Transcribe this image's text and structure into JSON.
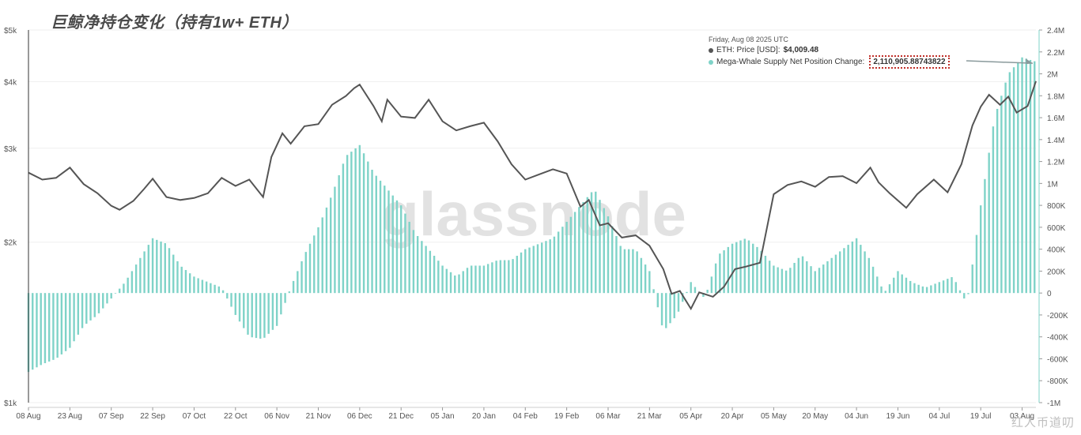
{
  "title": "巨鲸净持仓变化（持有1w+ ETH）",
  "watermark": "glassnode",
  "corner_watermark": "红人币道叨",
  "tooltip": {
    "date": "Friday, Aug 08 2025 UTC",
    "price_label": "ETH: Price [USD]:",
    "price_value": "$4,009.48",
    "supply_label": "Mega-Whale Supply Net Position Change:",
    "supply_value": "2,110,905.88743822"
  },
  "colors": {
    "price_line": "#555555",
    "bars": "#7fd3c8",
    "price_dot": "#555555",
    "supply_dot": "#7fd3c8",
    "highlight": "#c0302a",
    "arrow": "#8a9a9c"
  },
  "chart_data": {
    "type": "line+bar",
    "x_tick_labels": [
      "08 Aug",
      "23 Aug",
      "07 Sep",
      "22 Sep",
      "07 Oct",
      "22 Oct",
      "06 Nov",
      "21 Nov",
      "06 Dec",
      "21 Dec",
      "05 Jan",
      "20 Jan",
      "04 Feb",
      "19 Feb",
      "06 Mar",
      "21 Mar",
      "05 Apr",
      "20 Apr",
      "05 May",
      "20 May",
      "04 Jun",
      "19 Jun",
      "04 Jul",
      "19 Jul",
      "03 Aug"
    ],
    "x_tick_days": [
      0,
      15,
      30,
      45,
      60,
      75,
      90,
      105,
      120,
      135,
      150,
      165,
      180,
      195,
      210,
      225,
      240,
      255,
      270,
      285,
      300,
      315,
      330,
      345,
      360
    ],
    "x_range_days": [
      0,
      365
    ],
    "left_axis": {
      "scale": "log",
      "ticks": [
        1000,
        2000,
        3000,
        4000,
        5000
      ],
      "tick_labels": [
        "$1k",
        "$2k",
        "$3k",
        "$4k",
        "$5k"
      ],
      "range": [
        1000,
        5000
      ]
    },
    "right_axis": {
      "scale": "linear",
      "ticks": [
        -1000000,
        -800000,
        -600000,
        -400000,
        -200000,
        0,
        200000,
        400000,
        600000,
        800000,
        1000000,
        1200000,
        1400000,
        1600000,
        1800000,
        2000000,
        2200000,
        2400000
      ],
      "tick_labels": [
        "-1M",
        "-800K",
        "-600K",
        "-400K",
        "-200K",
        "0",
        "200K",
        "400K",
        "600K",
        "800K",
        "1M",
        "1.2M",
        "1.4M",
        "1.6M",
        "1.8M",
        "2M",
        "2.2M",
        "2.4M"
      ],
      "range": [
        -1000000,
        2400000
      ]
    },
    "price_series": {
      "name": "ETH: Price [USD]",
      "x_days": [
        0,
        5,
        10,
        15,
        20,
        25,
        30,
        33,
        38,
        42,
        45,
        50,
        55,
        60,
        65,
        70,
        75,
        80,
        85,
        88,
        92,
        95,
        100,
        105,
        110,
        115,
        118,
        120,
        125,
        128,
        130,
        135,
        140,
        145,
        150,
        155,
        160,
        165,
        170,
        175,
        180,
        185,
        190,
        195,
        200,
        203,
        207,
        210,
        215,
        220,
        225,
        230,
        233,
        236,
        240,
        243,
        248,
        252,
        256,
        260,
        265,
        270,
        275,
        280,
        285,
        290,
        295,
        300,
        305,
        308,
        312,
        318,
        322,
        328,
        333,
        338,
        342,
        345,
        348,
        352,
        355,
        358,
        362,
        365
      ],
      "values": [
        2700,
        2620,
        2640,
        2760,
        2570,
        2470,
        2340,
        2300,
        2390,
        2520,
        2630,
        2430,
        2400,
        2420,
        2470,
        2640,
        2550,
        2620,
        2430,
        2890,
        3200,
        3060,
        3300,
        3330,
        3620,
        3760,
        3890,
        3950,
        3600,
        3370,
        3700,
        3440,
        3420,
        3700,
        3370,
        3240,
        3300,
        3350,
        3090,
        2800,
        2620,
        2680,
        2740,
        2690,
        2330,
        2400,
        2150,
        2170,
        2040,
        2060,
        1970,
        1780,
        1600,
        1620,
        1500,
        1610,
        1580,
        1650,
        1780,
        1800,
        1830,
        2460,
        2560,
        2600,
        2540,
        2650,
        2660,
        2580,
        2760,
        2590,
        2470,
        2320,
        2460,
        2620,
        2480,
        2800,
        3310,
        3590,
        3780,
        3620,
        3750,
        3500,
        3600,
        4009
      ]
    },
    "bar_series": {
      "name": "Mega-Whale Supply Net Position Change",
      "x_days": [
        0,
        5,
        10,
        15,
        20,
        25,
        30,
        35,
        40,
        45,
        50,
        55,
        60,
        65,
        70,
        75,
        80,
        85,
        90,
        95,
        100,
        105,
        110,
        115,
        120,
        125,
        130,
        135,
        140,
        145,
        150,
        155,
        160,
        165,
        170,
        175,
        180,
        185,
        190,
        195,
        200,
        205,
        210,
        215,
        220,
        225,
        230,
        235,
        240,
        245,
        250,
        255,
        260,
        265,
        270,
        275,
        280,
        285,
        290,
        295,
        300,
        305,
        310,
        315,
        320,
        325,
        330,
        335,
        340,
        345,
        350,
        355,
        360,
        365
      ],
      "values": [
        -720000,
        -650000,
        -600000,
        -500000,
        -300000,
        -200000,
        -50000,
        100000,
        300000,
        500000,
        450000,
        250000,
        150000,
        100000,
        50000,
        -200000,
        -400000,
        -420000,
        -300000,
        50000,
        350000,
        600000,
        900000,
        1250000,
        1350000,
        1100000,
        950000,
        800000,
        550000,
        400000,
        250000,
        150000,
        250000,
        250000,
        300000,
        300000,
        400000,
        450000,
        500000,
        650000,
        800000,
        950000,
        700000,
        400000,
        400000,
        200000,
        -350000,
        -200000,
        100000,
        -50000,
        350000,
        450000,
        500000,
        400000,
        250000,
        200000,
        350000,
        200000,
        300000,
        400000,
        500000,
        300000,
        0,
        200000,
        100000,
        50000,
        100000,
        150000,
        -100000,
        800000,
        1600000,
        2000000,
        2150000,
        2110905
      ]
    },
    "legend_placement": "top-right tooltip",
    "grid": "horizontal"
  }
}
